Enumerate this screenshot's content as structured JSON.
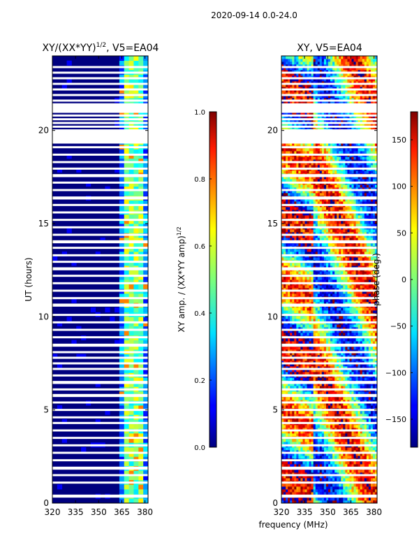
{
  "suptitle": "2020-09-14 0.0-24.0",
  "colors": {
    "background": "#00007f",
    "gap": "#ffffff",
    "axis": "#000000"
  },
  "chart_data": [
    {
      "type": "heatmap",
      "title": "XY/(XX*YY)",
      "title_exponent": "1/2",
      "title_suffix": ", V5=EA04",
      "xlabel": "",
      "ylabel": "UT (hours)",
      "xlim": [
        320,
        382
      ],
      "ylim": [
        0,
        24
      ],
      "x_ticks": [
        {
          "v": 320,
          "label": "320"
        },
        {
          "v": 335,
          "label": "335"
        },
        {
          "v": 350,
          "label": "350"
        },
        {
          "v": 365,
          "label": "365"
        },
        {
          "v": 380,
          "label": "380"
        }
      ],
      "y_ticks": [
        {
          "v": 0,
          "label": "0"
        },
        {
          "v": 5,
          "label": "5"
        },
        {
          "v": 10,
          "label": "10"
        },
        {
          "v": 15,
          "label": "15"
        },
        {
          "v": 20,
          "label": "20"
        }
      ],
      "colormap": "jet",
      "colorbar": {
        "label": "XY amp. / (XX*YY amp)",
        "label_exponent": "1/2",
        "range": [
          0.0,
          1.0
        ],
        "ticks": [
          {
            "v": 0.0,
            "label": "0.0"
          },
          {
            "v": 0.2,
            "label": "0.2"
          },
          {
            "v": 0.4,
            "label": "0.4"
          },
          {
            "v": 0.6,
            "label": "0.6"
          },
          {
            "v": 0.8,
            "label": "0.8"
          },
          {
            "v": 1.0,
            "label": "1.0"
          }
        ]
      }
    },
    {
      "type": "heatmap",
      "title": "XY, V5=EA04",
      "xlabel": "frequency (MHz)",
      "ylabel": "",
      "xlim": [
        320,
        382
      ],
      "ylim": [
        0,
        24
      ],
      "x_ticks": [
        {
          "v": 320,
          "label": "320"
        },
        {
          "v": 335,
          "label": "335"
        },
        {
          "v": 350,
          "label": "350"
        },
        {
          "v": 365,
          "label": "365"
        },
        {
          "v": 380,
          "label": "380"
        }
      ],
      "y_ticks": [
        {
          "v": 0,
          "label": "0"
        },
        {
          "v": 5,
          "label": "5"
        },
        {
          "v": 10,
          "label": "10"
        },
        {
          "v": 15,
          "label": "15"
        },
        {
          "v": 20,
          "label": "20"
        }
      ],
      "colormap": "jet",
      "colorbar": {
        "label": "phase (deg.)",
        "range": [
          -180,
          180
        ],
        "ticks": [
          {
            "v": 150,
            "label": "150"
          },
          {
            "v": 100,
            "label": "100"
          },
          {
            "v": 50,
            "label": "50"
          },
          {
            "v": 0,
            "label": "0"
          },
          {
            "v": -50,
            "label": "−50"
          },
          {
            "v": -100,
            "label": "−100"
          },
          {
            "v": -150,
            "label": "−150"
          }
        ]
      }
    }
  ],
  "gap_rows_hours": [
    0.35,
    0.4,
    1.1,
    1.5,
    1.85,
    1.9,
    2.3,
    2.7,
    3.1,
    3.5,
    3.9,
    4.3,
    4.6,
    5.0,
    5.4,
    5.75,
    5.8,
    6.1,
    6.45,
    6.5,
    6.85,
    7.2,
    7.5,
    7.8,
    8.1,
    8.45,
    8.5,
    8.9,
    9.3,
    9.7,
    10.1,
    10.6,
    10.65,
    11.0,
    11.4,
    11.8,
    12.2,
    12.55,
    12.6,
    12.95,
    13.3,
    13.7,
    14.0,
    14.05,
    14.4,
    14.8,
    15.2,
    15.6,
    16.0,
    16.35,
    16.4,
    16.8,
    17.2,
    17.55,
    17.6,
    17.95,
    18.3,
    18.7,
    19.1,
    19.35,
    20.0,
    20.2,
    20.4,
    20.6,
    20.8,
    21.0,
    21.2,
    21.4,
    21.6,
    21.9,
    22.2,
    22.5,
    22.8,
    23.1,
    23.4
  ]
}
